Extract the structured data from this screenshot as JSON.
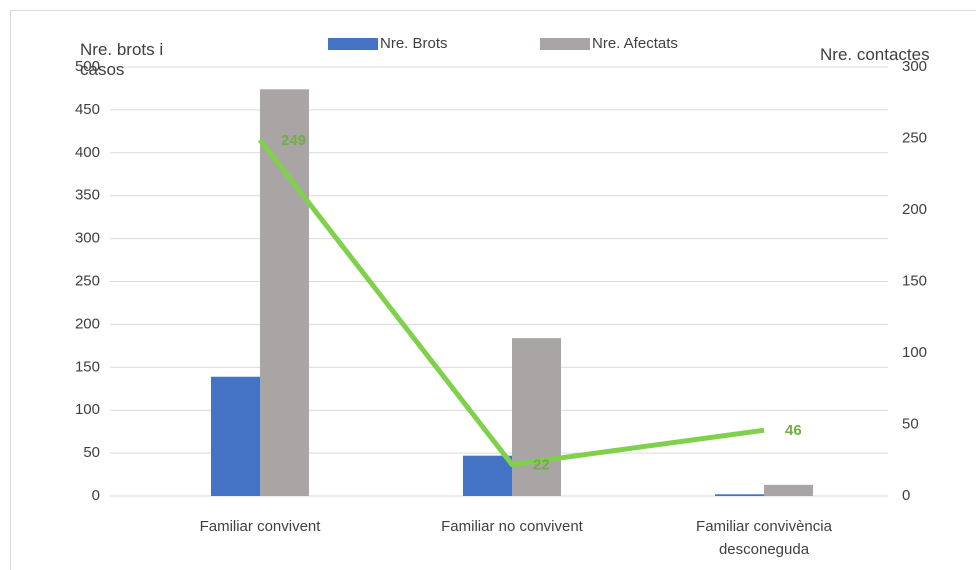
{
  "chart_data": {
    "type": "combo",
    "y_title": "Nre. brots i casos",
    "y2_title": "Nre. contactes",
    "categories": [
      "Familiar convivent",
      "Familiar no convivent",
      "Familiar convivència desconeguda"
    ],
    "series": [
      {
        "name": "Nre. Brots",
        "type": "bar",
        "color": "#4472c4",
        "values": [
          139,
          47,
          2
        ]
      },
      {
        "name": "Nre. Afectats",
        "type": "bar",
        "color": "#a9a5a5",
        "values": [
          474,
          184,
          13
        ]
      },
      {
        "type": "line",
        "axis": "y2",
        "color": "#7fd04a",
        "label_color": "#70ad47",
        "values": [
          249,
          22,
          46
        ]
      }
    ],
    "ylim": [
      0,
      500
    ],
    "yticks": [
      0,
      50,
      100,
      150,
      200,
      250,
      300,
      350,
      400,
      450,
      500
    ],
    "y2lim": [
      0,
      300
    ],
    "y2ticks": [
      0,
      50,
      100,
      150,
      200,
      250,
      300
    ],
    "grid": true,
    "legend": "top"
  }
}
